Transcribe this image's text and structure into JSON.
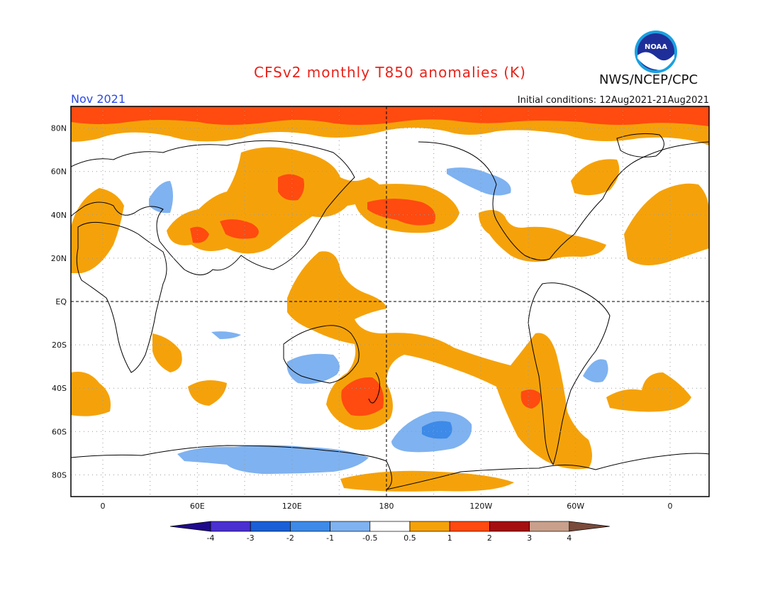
{
  "title": "CFSv2 monthly T850 anomalies (K)",
  "organization": "NWS/NCEP/CPC",
  "logo_text": "NOAA",
  "month_label": "Nov 2021",
  "initial_conditions": "Initial conditions: 12Aug2021-21Aug2021",
  "lat_labels": [
    "80N",
    "60N",
    "40N",
    "20N",
    "EQ",
    "20S",
    "40S",
    "60S",
    "80S"
  ],
  "lon_labels": [
    "0",
    "60E",
    "120E",
    "180",
    "120W",
    "60W",
    "0"
  ],
  "colorbar": {
    "labels": [
      "-4",
      "-3",
      "-2",
      "-1",
      "-0.5",
      "0.5",
      "1",
      "2",
      "3",
      "4"
    ],
    "colors": [
      "#1f0a8c",
      "#4a2fd1",
      "#1a5fd6",
      "#3d8ae8",
      "#7fb2f0",
      "#ffffff",
      "#f5a20a",
      "#ff4a10",
      "#a50f0f",
      "#c8a08c",
      "#7a4a3a"
    ]
  },
  "colors": {
    "warm_weak": "#f5a20a",
    "warm_mid": "#ff4a10",
    "cold_weak": "#7fb2f0",
    "cold_mid": "#3d8ae8"
  }
}
